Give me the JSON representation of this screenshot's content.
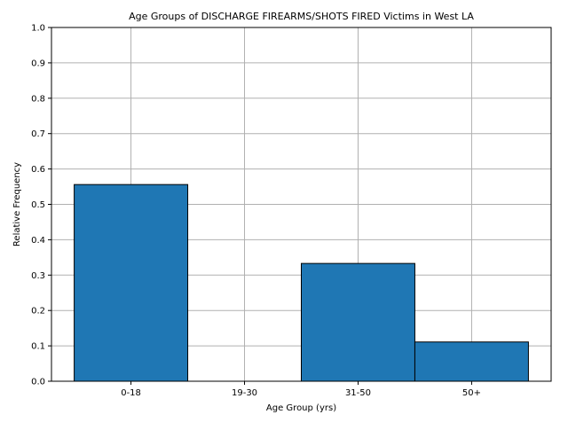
{
  "chart_data": {
    "type": "bar",
    "title": "Age Groups of DISCHARGE FIREARMS/SHOTS FIRED Victims in West LA",
    "xlabel": "Age Group (yrs)",
    "ylabel": "Relative Frequency",
    "categories": [
      "0-18",
      "19-30",
      "31-50",
      "50+"
    ],
    "values": [
      0.556,
      0.0,
      0.333,
      0.111
    ],
    "ylim": [
      0,
      1.0
    ],
    "yticks": [
      "0.0",
      "0.1",
      "0.2",
      "0.3",
      "0.4",
      "0.5",
      "0.6",
      "0.7",
      "0.8",
      "0.9",
      "1.0"
    ],
    "grid": true,
    "bar_color": "#1f77b4",
    "edge_color": "#000000",
    "grid_color": "#b0b0b0"
  }
}
